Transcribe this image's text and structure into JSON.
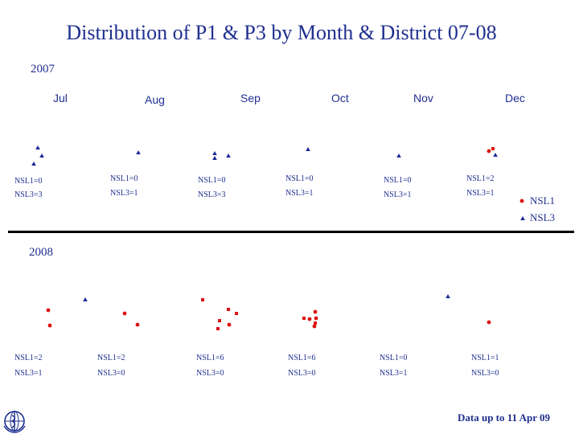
{
  "title": "Distribution of P1 & P3 by Month & District 07-08",
  "colors": {
    "text": "#1f2f8f",
    "nsl1": "#dd1111",
    "nsl3": "#1a2a99",
    "divider": "#000000"
  },
  "legend": {
    "nsl1": "NSL1",
    "nsl3": "NSL3"
  },
  "footer": "Data up to 11 Apr 09",
  "logo": {
    "icon": "who-emblem-icon",
    "text": ""
  },
  "year_2007": {
    "label": "2007",
    "months": [
      "Jul",
      "Aug",
      "Sep",
      "Oct",
      "Nov",
      "Dec"
    ],
    "counts": [
      {
        "nsl1": "NSL1=0",
        "nsl3": "NSL3=3"
      },
      {
        "nsl1": "NSL1=0",
        "nsl3": "NSL3=1"
      },
      {
        "nsl1": "NSL1=0",
        "nsl3": "NSL3=3"
      },
      {
        "nsl1": "NSL1=0",
        "nsl3": "NSL3=1"
      },
      {
        "nsl1": "NSL1=0",
        "nsl3": "NSL3=1"
      },
      {
        "nsl1": "NSL1=2",
        "nsl3": "NSL3=1"
      }
    ]
  },
  "year_2008": {
    "label": "2008",
    "counts": [
      {
        "nsl1": "NSL1=2",
        "nsl3": "NSL3=1"
      },
      {
        "nsl1": "NSL1=2",
        "nsl3": "NSL3=0"
      },
      {
        "nsl1": "NSL1=6",
        "nsl3": "NSL3=0"
      },
      {
        "nsl1": "NSL1=6",
        "nsl3": "NSL3=0"
      },
      {
        "nsl1": "NSL1=0",
        "nsl3": "NSL3=1"
      },
      {
        "nsl1": "NSL1=1",
        "nsl3": "NSL3=0"
      }
    ]
  }
}
